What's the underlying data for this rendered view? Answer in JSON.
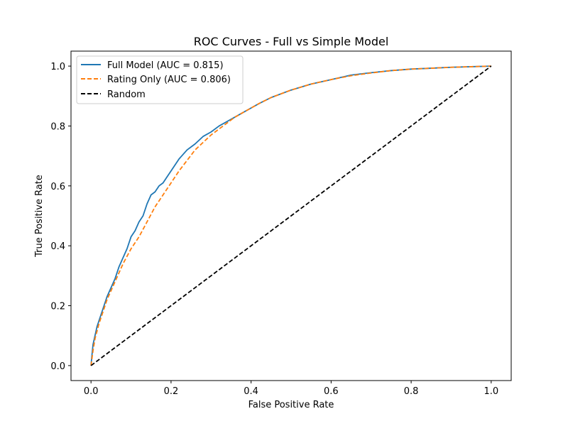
{
  "chart_data": {
    "type": "line",
    "title": "ROC Curves - Full vs Simple Model",
    "xlabel": "False Positive Rate",
    "ylabel": "True Positive Rate",
    "xlim": [
      -0.05,
      1.05
    ],
    "ylim": [
      -0.05,
      1.05
    ],
    "xticks": [
      "0.0",
      "0.2",
      "0.4",
      "0.6",
      "0.8",
      "1.0"
    ],
    "yticks": [
      "0.0",
      "0.2",
      "0.4",
      "0.6",
      "0.8",
      "1.0"
    ],
    "grid": false,
    "legend_position": "top-left",
    "series": [
      {
        "name": "Full Model (AUC = 0.815)",
        "color": "#1f77b4",
        "style": "solid",
        "x": [
          0,
          0.002,
          0.005,
          0.01,
          0.015,
          0.02,
          0.03,
          0.04,
          0.05,
          0.06,
          0.07,
          0.08,
          0.09,
          0.1,
          0.11,
          0.12,
          0.13,
          0.14,
          0.15,
          0.16,
          0.17,
          0.18,
          0.19,
          0.2,
          0.22,
          0.24,
          0.26,
          0.28,
          0.3,
          0.32,
          0.34,
          0.36,
          0.38,
          0.4,
          0.42,
          0.45,
          0.5,
          0.55,
          0.6,
          0.65,
          0.7,
          0.75,
          0.8,
          0.85,
          0.9,
          0.95,
          1.0
        ],
        "y": [
          0,
          0.03,
          0.07,
          0.1,
          0.13,
          0.15,
          0.19,
          0.23,
          0.26,
          0.29,
          0.33,
          0.36,
          0.39,
          0.43,
          0.45,
          0.48,
          0.5,
          0.54,
          0.57,
          0.58,
          0.6,
          0.61,
          0.63,
          0.65,
          0.69,
          0.72,
          0.74,
          0.765,
          0.78,
          0.8,
          0.815,
          0.83,
          0.845,
          0.86,
          0.875,
          0.895,
          0.92,
          0.94,
          0.955,
          0.97,
          0.978,
          0.985,
          0.99,
          0.993,
          0.996,
          0.998,
          1.0
        ]
      },
      {
        "name": "Rating Only (AUC = 0.806)",
        "color": "#ff7f0e",
        "style": "dashed",
        "x": [
          0,
          0.005,
          0.01,
          0.02,
          0.03,
          0.04,
          0.05,
          0.06,
          0.07,
          0.08,
          0.1,
          0.12,
          0.14,
          0.16,
          0.18,
          0.2,
          0.22,
          0.24,
          0.26,
          0.28,
          0.3,
          0.32,
          0.34,
          0.36,
          0.38,
          0.4,
          0.42,
          0.45,
          0.5,
          0.55,
          0.6,
          0.65,
          0.7,
          0.75,
          0.8,
          0.85,
          0.9,
          0.95,
          1.0
        ],
        "y": [
          0,
          0.05,
          0.09,
          0.14,
          0.18,
          0.22,
          0.25,
          0.28,
          0.31,
          0.34,
          0.39,
          0.43,
          0.48,
          0.53,
          0.57,
          0.61,
          0.65,
          0.685,
          0.72,
          0.745,
          0.77,
          0.79,
          0.81,
          0.83,
          0.845,
          0.86,
          0.875,
          0.895,
          0.92,
          0.94,
          0.955,
          0.968,
          0.977,
          0.985,
          0.99,
          0.993,
          0.996,
          0.998,
          1.0
        ]
      },
      {
        "name": "Random",
        "color": "#000000",
        "style": "dashed",
        "x": [
          0,
          1
        ],
        "y": [
          0,
          1
        ]
      }
    ]
  }
}
